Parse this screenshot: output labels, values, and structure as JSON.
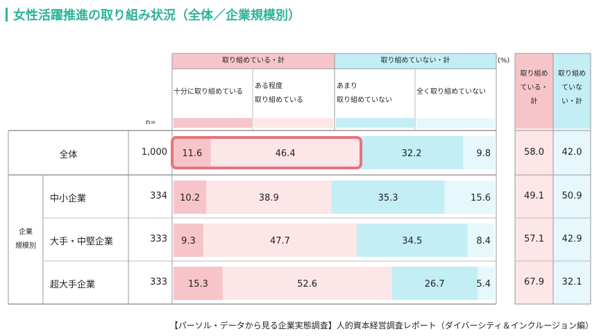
{
  "title": "女性活躍推進の取り組み状況（全体／企業規模別）",
  "header": {
    "group_positive": "取り組めている・計",
    "group_negative": "取り組めていない・計",
    "unit": "(%)",
    "col1": "十分に取り組めている",
    "col2_line1": "ある程度",
    "col2_line2": "取り組めている",
    "col3_line1": "あまり",
    "col3_line2": "取り組めていない",
    "col4": "全く取り組めていない",
    "sum1_line1": "取り組め",
    "sum1_line2": "ている・",
    "sum1_line3": "計",
    "sum2_line1": "取り組め",
    "sum2_line2": "ていな",
    "sum2_line3": "い・計",
    "n_label": "n="
  },
  "group_label_line1": "企業",
  "group_label_line2": "規模別",
  "rows": [
    {
      "label": "全体",
      "n": "1,000",
      "sum_pos": "58.0",
      "sum_neg": "42.0"
    },
    {
      "label": "中小企業",
      "n": "334",
      "sum_pos": "49.1",
      "sum_neg": "50.9"
    },
    {
      "label": "大手・中堅企業",
      "n": "333",
      "sum_pos": "57.1",
      "sum_neg": "42.9"
    },
    {
      "label": "超大手企業",
      "n": "333",
      "sum_pos": "67.9",
      "sum_neg": "32.1"
    }
  ],
  "chart_data": {
    "type": "bar",
    "stacked": true,
    "orientation": "horizontal",
    "categories": [
      "全体",
      "中小企業",
      "大手・中堅企業",
      "超大手企業"
    ],
    "series": [
      {
        "name": "十分に取り組めている",
        "values": [
          11.6,
          10.2,
          9.3,
          15.3
        ],
        "color": "#f7c5c9"
      },
      {
        "name": "ある程度取り組めている",
        "values": [
          46.4,
          38.9,
          47.7,
          52.6
        ],
        "color": "#fde6e8"
      },
      {
        "name": "あまり取り組めていない",
        "values": [
          32.2,
          35.3,
          34.5,
          26.7
        ],
        "color": "#c3eef6"
      },
      {
        "name": "全く取り組めていない",
        "values": [
          9.8,
          15.6,
          8.4,
          5.4
        ],
        "color": "#e6f8fb"
      }
    ],
    "xlim": [
      0,
      100
    ]
  },
  "footer": "【パーソル・データから見る企業実態調査】人的資本経営調査レポート（ダイバーシティ＆インクルージョン編）",
  "colors": {
    "accent": "#2bb39b",
    "pos_header": "#f7c5c9",
    "neg_header": "#c3eef6",
    "highlight": "#e8737c"
  }
}
